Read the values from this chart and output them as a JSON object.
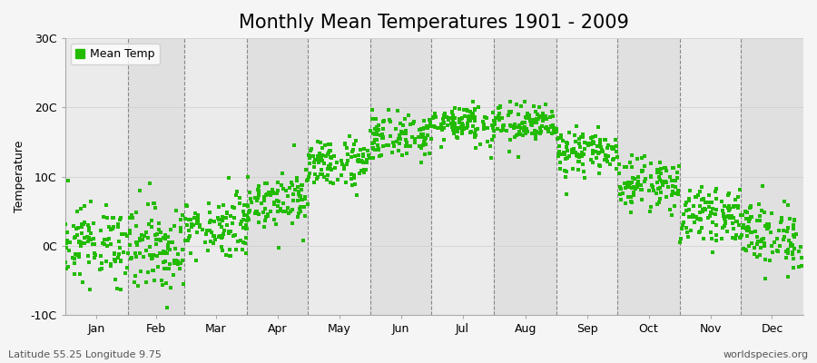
{
  "title": "Monthly Mean Temperatures 1901 - 2009",
  "ylabel": "Temperature",
  "subtitle_left": "Latitude 55.25 Longitude 9.75",
  "subtitle_right": "worldspecies.org",
  "legend_label": "Mean Temp",
  "dot_color": "#22bb00",
  "bg_color_light": "#ebebeb",
  "bg_color_dark": "#e0e0e0",
  "fig_bg": "#f5f5f5",
  "ylim": [
    -10,
    30
  ],
  "yticks": [
    -10,
    0,
    10,
    20,
    30
  ],
  "ytick_labels": [
    "-10C",
    "0C",
    "10C",
    "20C",
    "30C"
  ],
  "months": [
    "Jan",
    "Feb",
    "Mar",
    "Apr",
    "May",
    "Jun",
    "Jul",
    "Aug",
    "Sep",
    "Oct",
    "Nov",
    "Dec"
  ],
  "month_days": [
    31,
    28,
    31,
    30,
    31,
    30,
    31,
    31,
    30,
    31,
    30,
    31
  ],
  "month_means": [
    0.3,
    -0.2,
    2.8,
    6.8,
    12.0,
    15.8,
    17.8,
    17.5,
    13.5,
    9.0,
    4.5,
    1.5
  ],
  "month_stds": [
    2.8,
    3.2,
    2.2,
    2.0,
    1.8,
    1.6,
    1.5,
    1.5,
    1.6,
    1.8,
    1.8,
    2.5
  ],
  "n_years": 109,
  "dot_size": 5,
  "title_fontsize": 15,
  "label_fontsize": 9,
  "tick_fontsize": 9,
  "axis_label_fontsize": 9
}
